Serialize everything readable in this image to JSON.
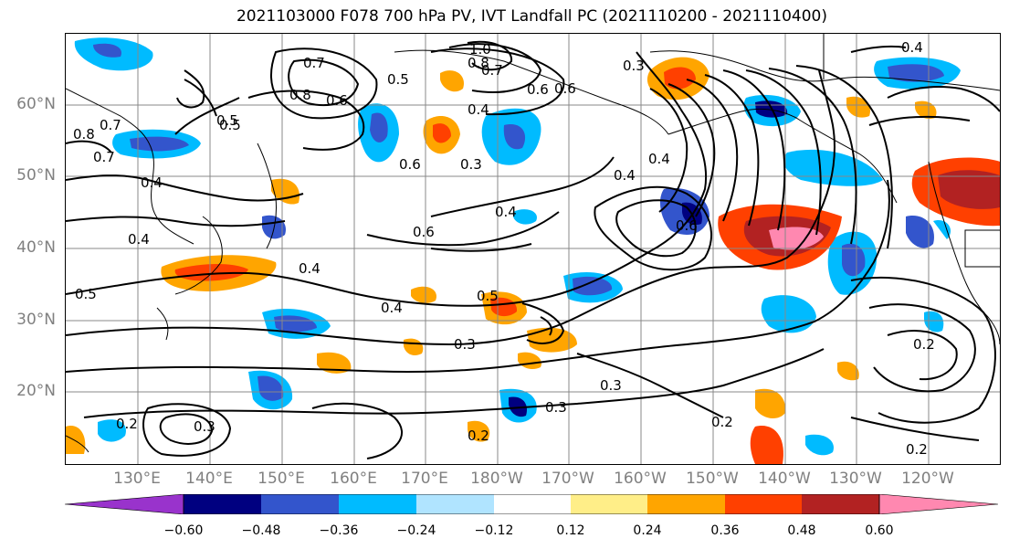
{
  "title": "2021103000 F078 700 hPa PV, IVT Landfall PC (2021110200 - 2021110400)",
  "lat_labels": [
    "60°N",
    "50°N",
    "40°N",
    "30°N",
    "20°N"
  ],
  "lon_labels": [
    "130°E",
    "140°E",
    "150°E",
    "160°E",
    "170°E",
    "180°W",
    "170°W",
    "160°W",
    "150°W",
    "140°W",
    "130°W",
    "120°W"
  ],
  "colorbar": {
    "tick_labels": [
      "−0.60",
      "−0.48",
      "−0.36",
      "−0.24",
      "−0.12",
      "0.12",
      "0.24",
      "0.36",
      "0.48",
      "0.60"
    ],
    "colors": [
      "#9933cc",
      "#000080",
      "#3355cc",
      "#00bbff",
      "#b0e4ff",
      "#ffffff",
      "#ffee88",
      "#ffa500",
      "#ff4000",
      "#b22222",
      "#ff88b0"
    ]
  },
  "contour_labels": [
    "1.0",
    "0.8",
    "0.7",
    "0.7",
    "0.8",
    "0.6",
    "0.5",
    "0.4",
    "0.7",
    "0.5",
    "0.6",
    "0.4",
    "0.3",
    "0.3",
    "0.6",
    "0.4",
    "0.6",
    "0.4",
    "0.5",
    "0.4",
    "0.5",
    "0.4",
    "0.3",
    "0.3",
    "0.3",
    "0.2",
    "0.2",
    "0.2",
    "0.3",
    "0.2",
    "0.2",
    "0.6",
    "0.4",
    "0.4",
    "0.6",
    "0.5",
    "0.4",
    "0.7",
    "0.8"
  ]
}
